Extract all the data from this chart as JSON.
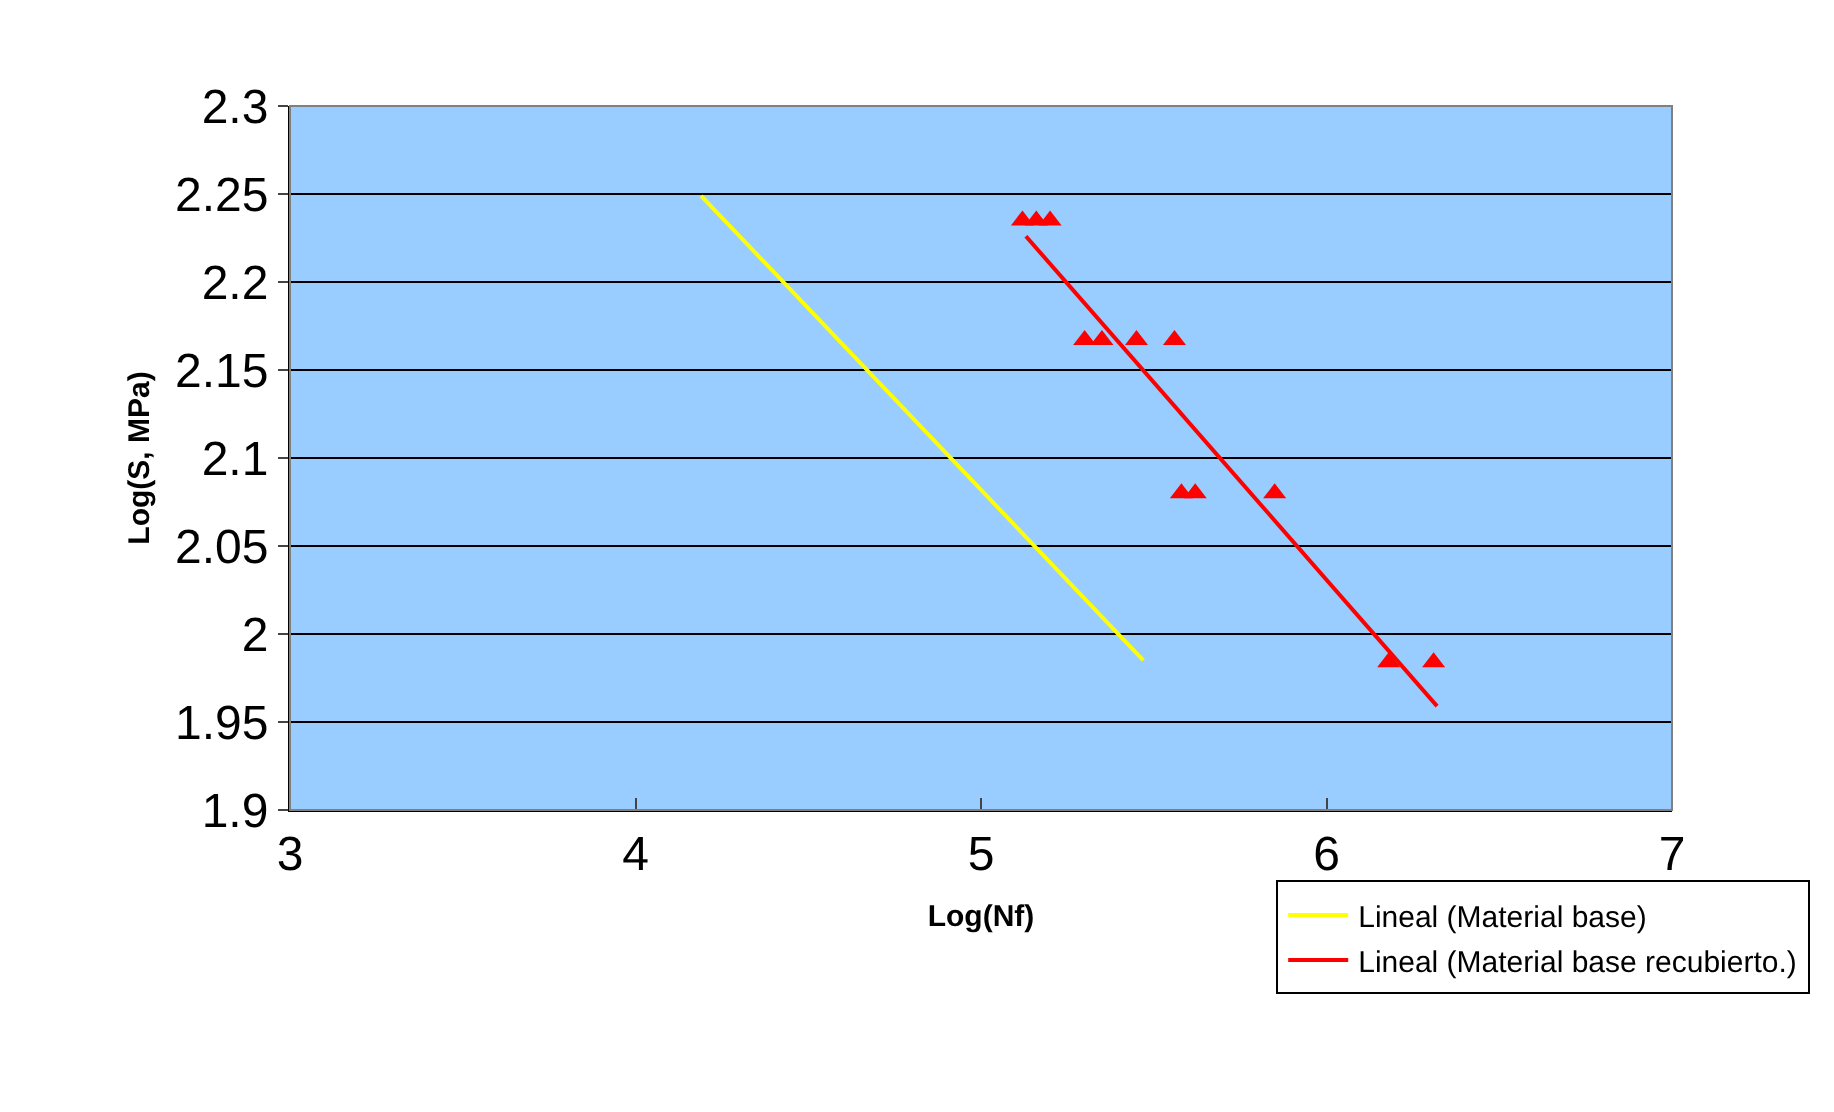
{
  "chart_data": {
    "type": "scatter",
    "xlabel": "Log(Nf)",
    "ylabel": "Log(S, MPa)",
    "xlim": [
      3,
      7
    ],
    "xticks": [
      3,
      4,
      5,
      6,
      7
    ],
    "ylim": [
      1.9,
      2.3
    ],
    "yticks": [
      1.9,
      1.95,
      2,
      2.05,
      2.1,
      2.15,
      2.2,
      2.25,
      2.3
    ],
    "grid": "y",
    "legend": "bottom right",
    "series": [
      {
        "color": "#ff0000",
        "marker": "triangle",
        "x": [
          5.12,
          5.16,
          5.2,
          5.3,
          5.35,
          5.45,
          5.56,
          5.58,
          5.62,
          5.85,
          6.18,
          6.31
        ],
        "values": [
          2.235,
          2.235,
          2.235,
          2.167,
          2.167,
          2.167,
          2.167,
          2.08,
          2.08,
          2.08,
          1.984,
          1.984
        ]
      },
      {
        "type": "line",
        "name": "Lineal (Material base)",
        "color": "#ffff00",
        "x": [
          4.19,
          5.47
        ],
        "values": [
          2.249,
          1.985
        ]
      },
      {
        "type": "line",
        "name": "Lineal (Material base recubierto.)",
        "color": "#ff0000",
        "x": [
          5.13,
          6.32
        ],
        "values": [
          2.226,
          1.959
        ]
      }
    ]
  }
}
